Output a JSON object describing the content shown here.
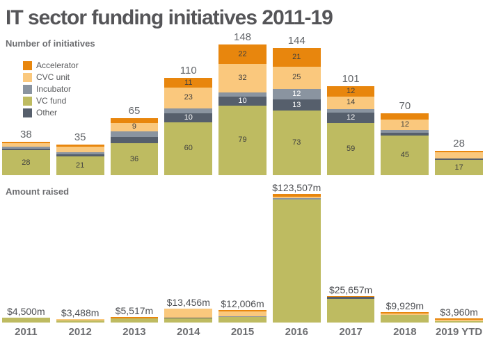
{
  "title": "IT sector funding initiatives 2011-19",
  "colors": {
    "accelerator": "#E8860D",
    "cvc_unit": "#FAC87D",
    "incubator": "#8A94A0",
    "vc_fund": "#BEBB61",
    "other": "#565F6C",
    "label_dark": "#3F3F3F",
    "label_light": "#FFFFFF"
  },
  "legend": [
    {
      "label": "Accelerator",
      "key": "accelerator"
    },
    {
      "label": "CVC unit",
      "key": "cvc_unit"
    },
    {
      "label": "Incubator",
      "key": "incubator"
    },
    {
      "label": "VC fund",
      "key": "vc_fund"
    },
    {
      "label": "Other",
      "key": "other"
    }
  ],
  "x_axis": {
    "categories": [
      "2011",
      "2012",
      "2013",
      "2014",
      "2015",
      "2016",
      "2017",
      "2018",
      "2019 YTD"
    ]
  },
  "chart_data": [
    {
      "id": "initiatives",
      "type": "bar",
      "stacked": true,
      "title": "Number of initiatives",
      "categories": [
        "2011",
        "2012",
        "2013",
        "2014",
        "2015",
        "2016",
        "2017",
        "2018",
        "2019 YTD"
      ],
      "stack_order_bottom_to_top": [
        "vc_fund",
        "other",
        "incubator",
        "cvc_unit",
        "accelerator"
      ],
      "series": [
        {
          "name": "Accelerator",
          "key": "accelerator",
          "values": [
            2,
            3,
            6,
            11,
            22,
            21,
            12,
            7,
            2
          ]
        },
        {
          "name": "CVC unit",
          "key": "cvc_unit",
          "values": [
            4,
            6,
            9,
            23,
            32,
            25,
            14,
            12,
            7
          ]
        },
        {
          "name": "Incubator",
          "key": "incubator",
          "values": [
            2,
            2,
            7,
            6,
            5,
            12,
            4,
            3,
            0
          ]
        },
        {
          "name": "VC fund",
          "key": "vc_fund",
          "values": [
            28,
            21,
            36,
            60,
            79,
            73,
            59,
            45,
            17
          ]
        },
        {
          "name": "Other",
          "key": "other",
          "values": [
            2,
            3,
            7,
            10,
            10,
            13,
            12,
            3,
            2
          ]
        }
      ],
      "totals": [
        38,
        35,
        65,
        110,
        148,
        144,
        101,
        70,
        28
      ],
      "segment_label_min_value": 9,
      "note": "Segments below the label threshold are unlabeled in the source; those values are estimated from bar heights."
    },
    {
      "id": "amount-raised",
      "type": "bar",
      "stacked": true,
      "title": "Amount raised",
      "unit": "$m",
      "categories": [
        "2011",
        "2012",
        "2013",
        "2014",
        "2015",
        "2016",
        "2017",
        "2018",
        "2019 YTD"
      ],
      "stack_order_bottom_to_top": [
        "vc_fund",
        "other",
        "incubator",
        "cvc_unit",
        "accelerator"
      ],
      "series": [
        {
          "name": "Accelerator",
          "key": "accelerator",
          "values": [
            0,
            0,
            1300,
            0,
            1300,
            2900,
            1100,
            1000,
            1000
          ]
        },
        {
          "name": "CVC unit",
          "key": "cvc_unit",
          "values": [
            0,
            1300,
            0,
            8700,
            4400,
            1000,
            0,
            1300,
            1300
          ]
        },
        {
          "name": "Incubator",
          "key": "incubator",
          "values": [
            0,
            0,
            0,
            0,
            1000,
            1300,
            0,
            0,
            0
          ]
        },
        {
          "name": "VC fund",
          "key": "vc_fund",
          "values": [
            4500,
            2188,
            4217,
            3756,
            5306,
            118307,
            23007,
            7629,
            1660
          ]
        },
        {
          "name": "Other",
          "key": "other",
          "values": [
            0,
            0,
            0,
            1000,
            0,
            0,
            1550,
            0,
            0
          ]
        }
      ],
      "totals": [
        4500,
        3488,
        5517,
        13456,
        12006,
        123507,
        25657,
        9929,
        3960
      ],
      "total_labels": [
        "$4,500m",
        "$3,488m",
        "$5,517m",
        "$13,456m",
        "$12,006m",
        "$123,507m",
        "$25,657m",
        "$9,929m",
        "$3,960m"
      ],
      "note": "Only bar totals are labeled in the source; the per-segment split is estimated from segment heights."
    }
  ]
}
